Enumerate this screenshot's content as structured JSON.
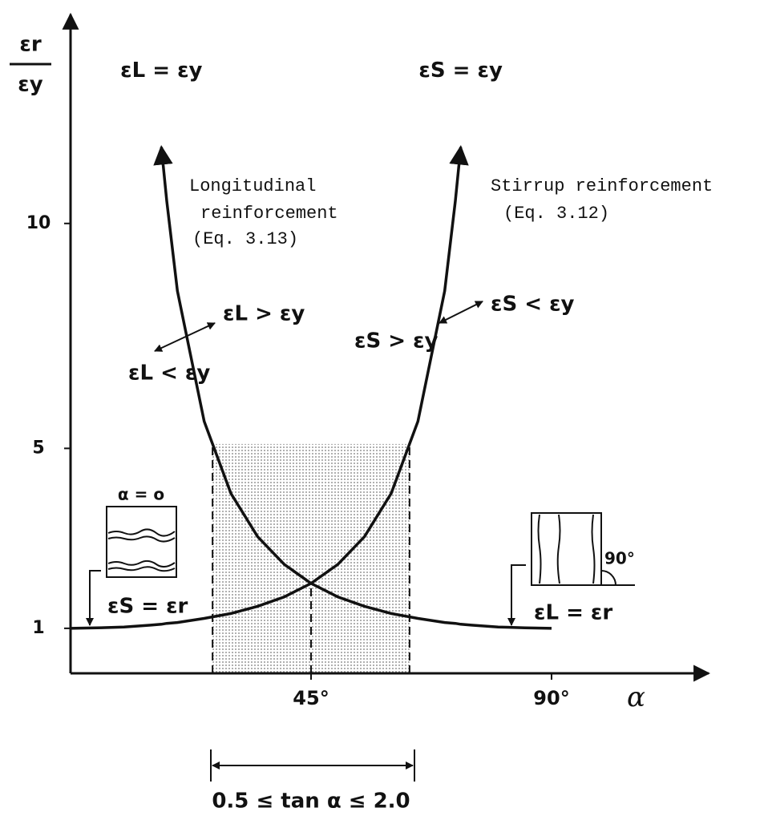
{
  "chart_data": {
    "type": "line",
    "y_label": {
      "numerator": "εr",
      "denominator": "εy"
    },
    "x_label": "α",
    "x": [
      0,
      5,
      10,
      15,
      17,
      18,
      20,
      25,
      30,
      35,
      40,
      45,
      50,
      55,
      60,
      65,
      70,
      72,
      73,
      75,
      80,
      85,
      90
    ],
    "series": [
      {
        "name": "εL = εy",
        "color": "#111111",
        "values": [
          null,
          null,
          null,
          null,
          11.7,
          10.5,
          8.5,
          5.6,
          4.0,
          3.04,
          2.42,
          2.0,
          1.7,
          1.49,
          1.33,
          1.22,
          1.13,
          1.11,
          1.09,
          1.07,
          1.03,
          1.01,
          1.0
        ]
      },
      {
        "name": "εS = εy",
        "color": "#111111",
        "values": [
          1.0,
          1.01,
          1.03,
          1.07,
          1.09,
          1.11,
          1.13,
          1.22,
          1.33,
          1.49,
          1.7,
          2.0,
          2.42,
          3.04,
          4.0,
          5.6,
          8.5,
          10.5,
          11.7,
          null,
          null,
          null,
          null
        ]
      }
    ],
    "xlim": [
      0,
      118.8
    ],
    "ylim": [
      0,
      14.7
    ],
    "xticks": [
      {
        "value": 45,
        "label": "45°"
      },
      {
        "value": 90,
        "label": "90°"
      }
    ],
    "yticks": [
      1,
      5,
      10
    ],
    "shaded_band": [
      26.57,
      63.43
    ],
    "annotations": {
      "longitudinal": [
        "Longitudinal",
        "reinforcement",
        "(Eq. 3.13)"
      ],
      "stirrup": [
        "Stirrup reinforcement",
        "(Eq. 3.12)"
      ],
      "l_greater": "εL > εy",
      "l_less": "εL < εy",
      "s_greater": "εS > εy",
      "s_less": "εS < εy",
      "alpha_zero": "α = o",
      "s_equals_r": "εS = εr",
      "ninety": "90°",
      "l_equals_r": "εL = εr",
      "range": "0.5 ≤ tan α ≤ 2.0"
    }
  }
}
